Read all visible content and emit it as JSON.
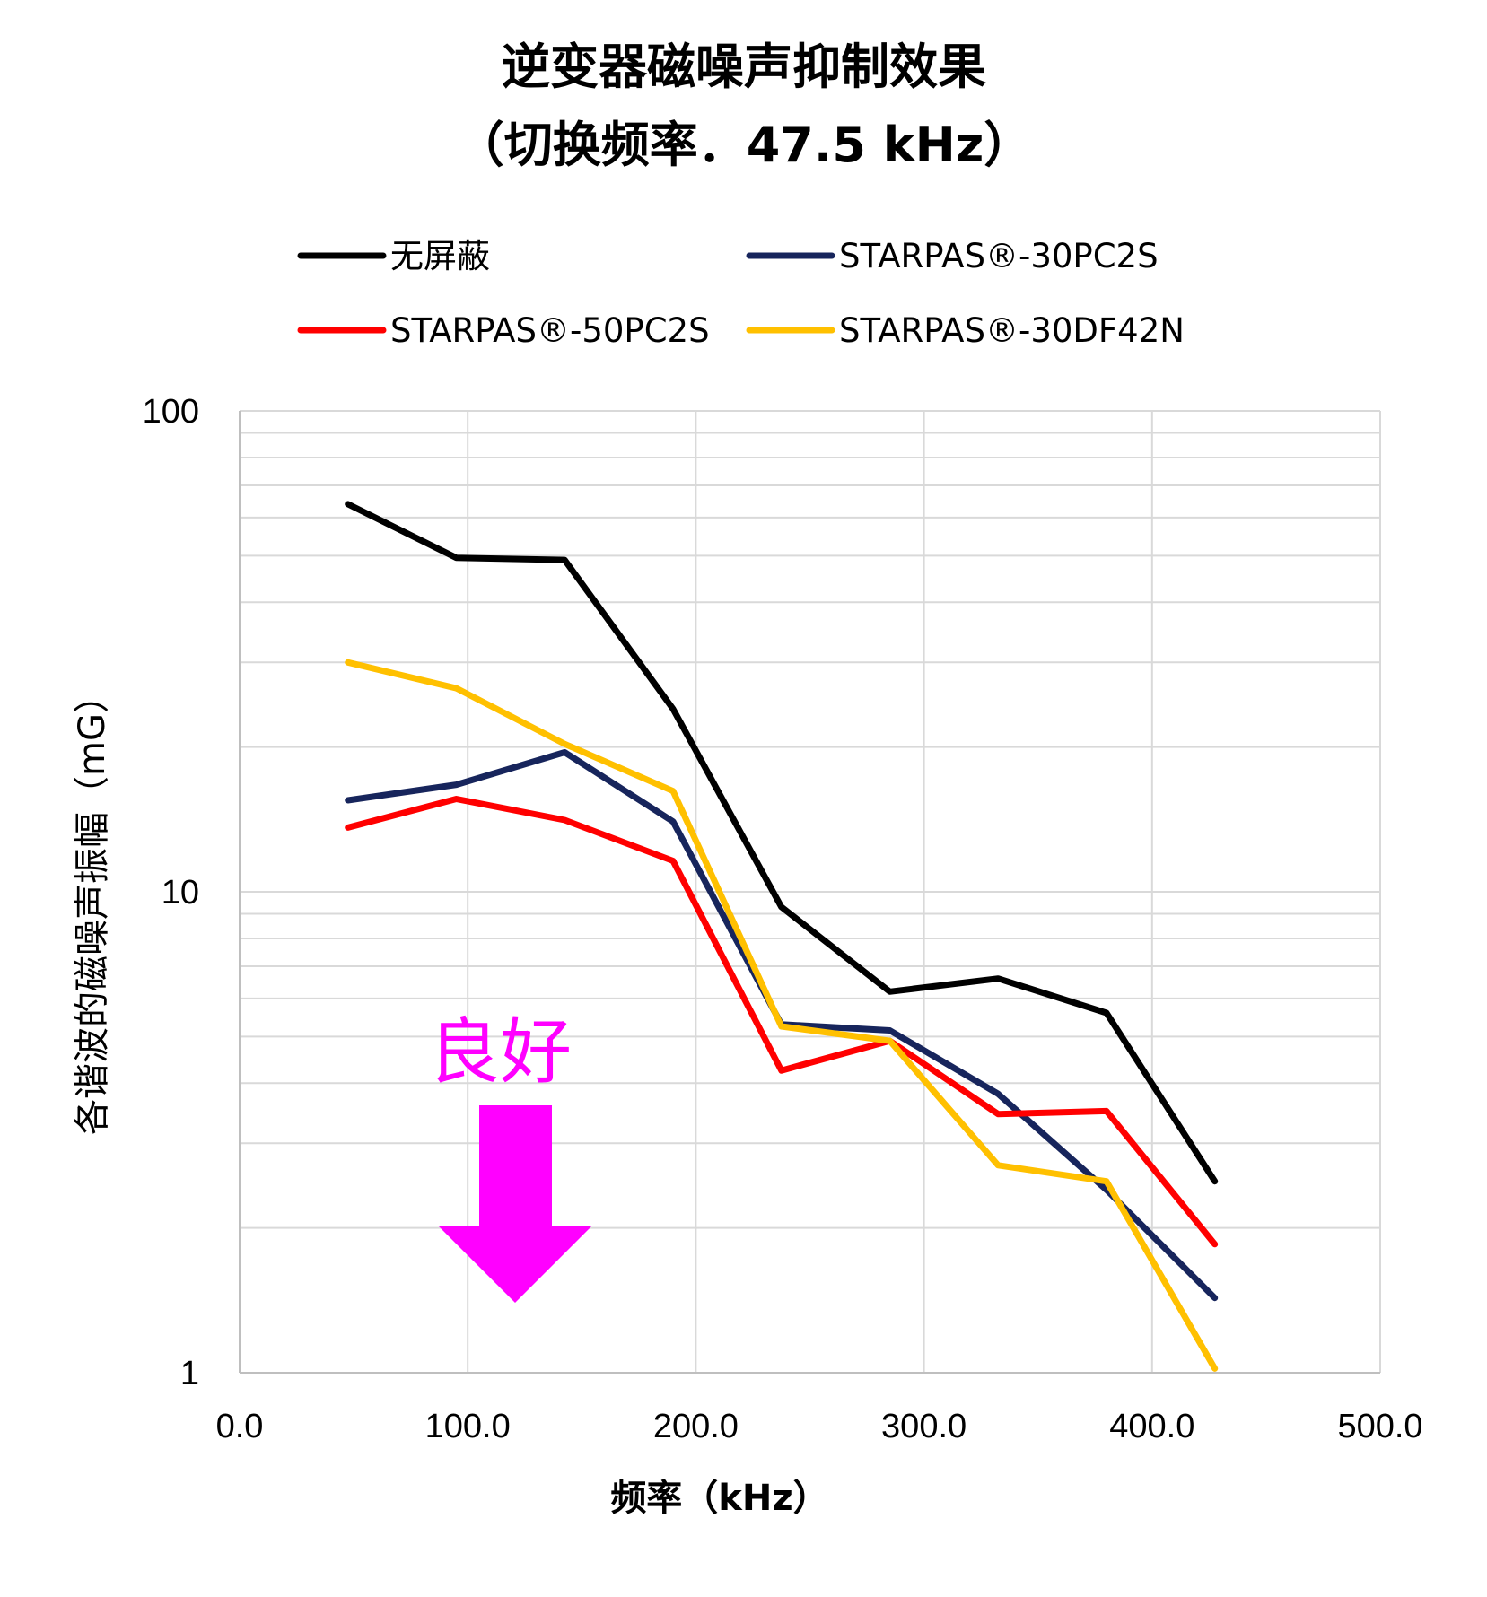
{
  "chart_data": {
    "type": "line",
    "title": "逆变器磁噪声抑制效果",
    "subtitle": "（切换频率．47.5 kHz）",
    "xlabel": "频率（kHz）",
    "ylabel": "各谐波的磁噪声振幅（mG）",
    "xlim": [
      0,
      500
    ],
    "ylim": [
      1,
      100
    ],
    "yscale": "log",
    "grid": true,
    "legend_position": "top",
    "x_ticks": [
      "0.0",
      "100.0",
      "200.0",
      "300.0",
      "400.0",
      "500.0"
    ],
    "y_ticks": [
      "1",
      "10",
      "100"
    ],
    "x": [
      47.5,
      95,
      142.5,
      190,
      237.5,
      285,
      332.5,
      380,
      427.5
    ],
    "series": [
      {
        "name": "无屏蔽",
        "color": "#000000",
        "values": [
          64,
          49.5,
          49,
          24,
          9.3,
          6.2,
          6.6,
          5.6,
          2.5
        ]
      },
      {
        "name": "STARPAS®-30PC2S",
        "color": "#17255c",
        "values": [
          15.5,
          16.7,
          19.5,
          14,
          5.3,
          5.15,
          3.8,
          2.4,
          1.43
        ]
      },
      {
        "name": "STARPAS®-50PC2S",
        "color": "#ff0000",
        "values": [
          13.6,
          15.6,
          14.1,
          11.6,
          4.25,
          4.9,
          3.45,
          3.5,
          1.85
        ]
      },
      {
        "name": "STARPAS®-30DF42N",
        "color": "#ffc000",
        "values": [
          30,
          26.5,
          20.3,
          16.2,
          5.25,
          4.9,
          2.7,
          2.5,
          1.02
        ]
      }
    ],
    "annotation": {
      "text": "良好",
      "color": "#ff00ff"
    }
  }
}
